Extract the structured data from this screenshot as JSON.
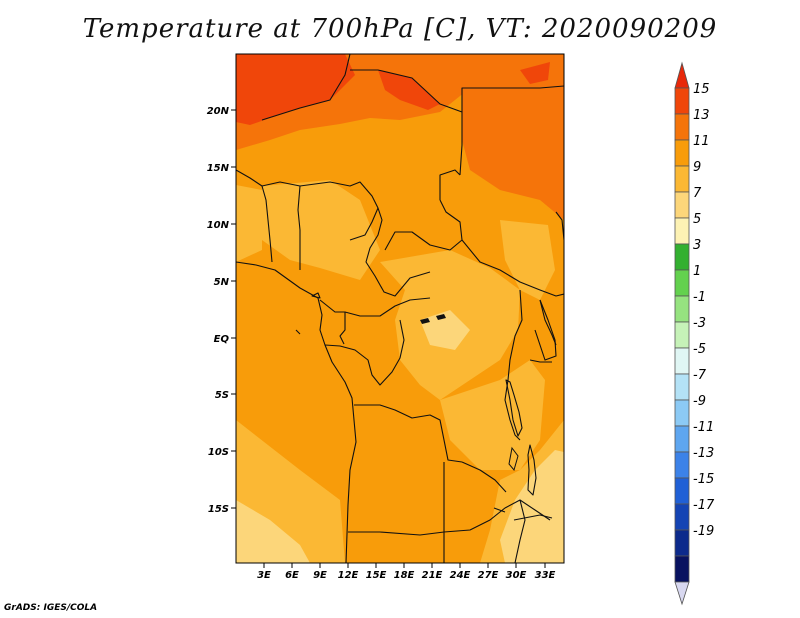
{
  "title": "Temperature at 700hPa [C], VT: 2020090209",
  "credit": "GrADS: IGES/COLA",
  "map": {
    "lat_ticks": [
      "20N",
      "15N",
      "10N",
      "5N",
      "EQ",
      "5S",
      "10S",
      "15S"
    ],
    "lon_ticks": [
      "3E",
      "6E",
      "9E",
      "12E",
      "15E",
      "18E",
      "21E",
      "24E",
      "27E",
      "30E",
      "33E"
    ]
  },
  "colorbar": {
    "labels": [
      "15",
      "13",
      "11",
      "9",
      "7",
      "5",
      "3",
      "1",
      "-1",
      "-3",
      "-5",
      "-7",
      "-9",
      "-11",
      "-13",
      "-15",
      "-17",
      "-19"
    ],
    "colors": [
      "#e8280a",
      "#f0460a",
      "#f5740a",
      "#f89c0a",
      "#fbb834",
      "#fcd67a",
      "#fdf2b4",
      "#33b030",
      "#63d14e",
      "#96e380",
      "#c6f2b8",
      "#e0f6f4",
      "#b4e2f6",
      "#8ccaf5",
      "#5ea6f0",
      "#3c82e8",
      "#2060d6",
      "#1444b4",
      "#0c2a8c",
      "#081260"
    ],
    "triangle_top": "#e8280a",
    "triangle_bottom": "#d8d8f0"
  }
}
